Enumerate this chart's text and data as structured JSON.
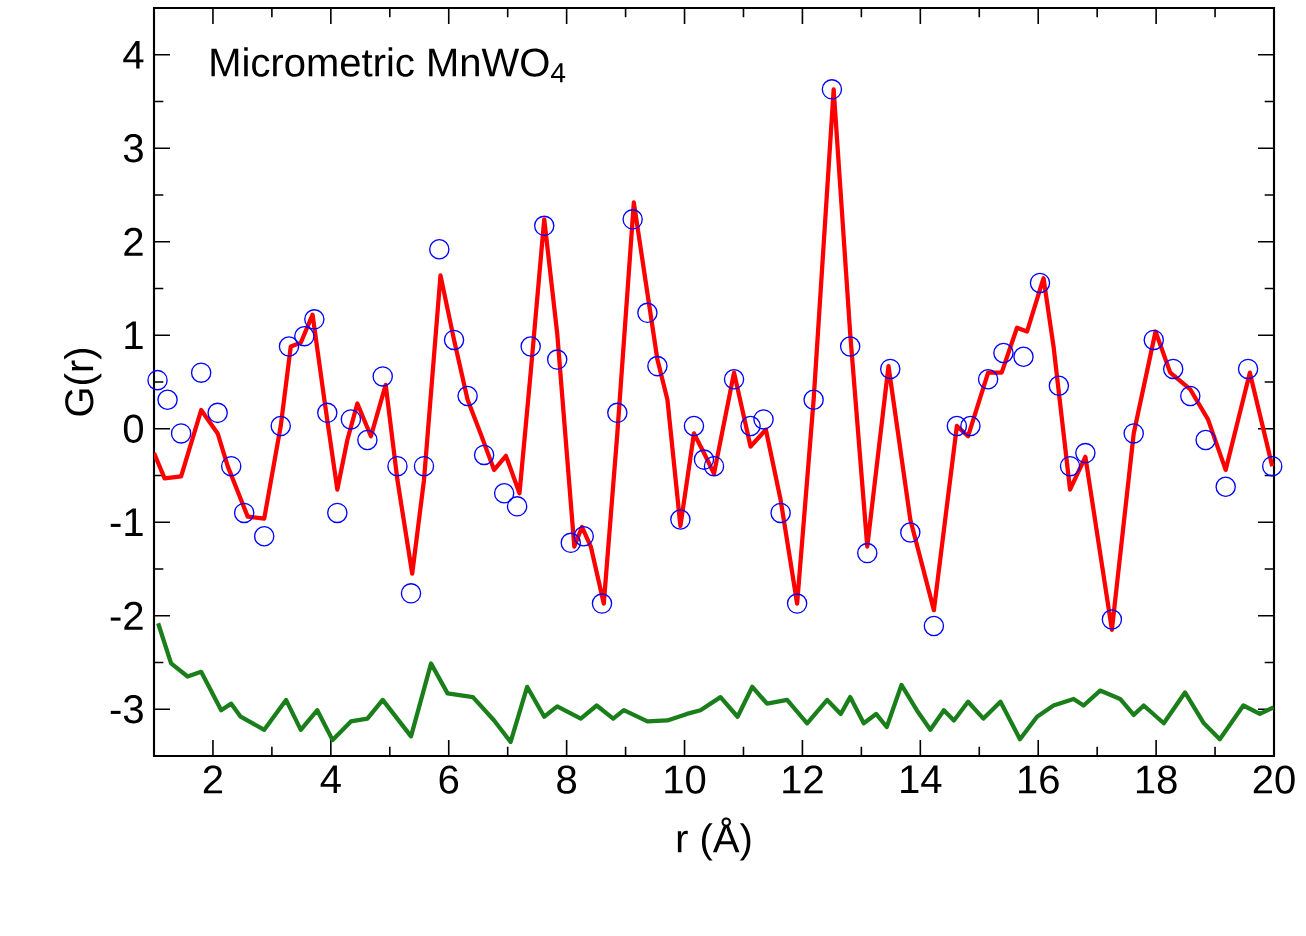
{
  "chart_data": {
    "type": "line",
    "xlabel": "r (Å)",
    "ylabel": "G(r)",
    "annotations": [
      "Micrometric MnWO$_{4}$"
    ],
    "xlim": [
      1,
      20
    ],
    "ylim": [
      -3.5,
      4.5
    ],
    "xticks": [
      2,
      4,
      6,
      8,
      10,
      12,
      14,
      16,
      18,
      20
    ],
    "yticks": [
      -3,
      -2,
      -1,
      0,
      1,
      2,
      3,
      4
    ],
    "grid": false,
    "series": [
      {
        "type": "scatter",
        "marker": "circle",
        "color": "#0000ff",
        "x": [
          1.06,
          1.23,
          1.46,
          1.8,
          2.08,
          2.31,
          2.53,
          2.87,
          3.15,
          3.29,
          3.55,
          3.72,
          3.94,
          4.11,
          4.34,
          4.62,
          4.88,
          5.13,
          5.36,
          5.58,
          5.84,
          6.09,
          6.32,
          6.6,
          6.94,
          7.16,
          7.39,
          7.62,
          7.84,
          8.07,
          8.29,
          8.6,
          8.86,
          9.12,
          9.37,
          9.54,
          9.93,
          10.16,
          10.33,
          10.5,
          10.84,
          11.12,
          11.34,
          11.63,
          11.91,
          12.19,
          12.5,
          12.81,
          13.1,
          13.49,
          13.83,
          14.23,
          14.62,
          14.85,
          15.15,
          15.41,
          15.75,
          16.03,
          16.35,
          16.54,
          16.8,
          17.25,
          17.62,
          17.96,
          18.29,
          18.58,
          18.84,
          19.18,
          19.56,
          19.97
        ],
        "values": [
          0.52,
          0.31,
          -0.05,
          0.6,
          0.17,
          -0.4,
          -0.9,
          -1.15,
          0.03,
          0.88,
          0.99,
          1.17,
          0.17,
          -0.9,
          0.1,
          -0.12,
          0.56,
          -0.4,
          -1.76,
          -0.4,
          1.92,
          0.95,
          0.35,
          -0.28,
          -0.69,
          -0.83,
          0.88,
          2.17,
          0.74,
          -1.22,
          -1.15,
          -1.87,
          0.17,
          2.24,
          1.24,
          0.67,
          -0.97,
          0.03,
          -0.33,
          -0.4,
          0.53,
          0.03,
          0.1,
          -0.9,
          -1.87,
          0.31,
          3.63,
          0.88,
          -1.33,
          0.64,
          -1.11,
          -2.11,
          0.03,
          0.03,
          0.53,
          0.81,
          0.77,
          1.56,
          0.46,
          -0.4,
          -0.26,
          -2.04,
          -0.05,
          0.95,
          0.64,
          0.35,
          -0.12,
          -0.62,
          0.64,
          -0.4
        ]
      },
      {
        "color": "#ff0000",
        "x": [
          1.0,
          1.18,
          1.46,
          1.8,
          2.08,
          2.25,
          2.59,
          2.87,
          3.15,
          3.32,
          3.49,
          3.69,
          3.89,
          4.11,
          4.28,
          4.45,
          4.68,
          4.93,
          5.13,
          5.38,
          5.58,
          5.86,
          6.09,
          6.32,
          6.54,
          6.77,
          6.97,
          7.2,
          7.39,
          7.62,
          7.84,
          8.13,
          8.26,
          8.41,
          8.63,
          8.86,
          9.14,
          9.37,
          9.54,
          9.71,
          9.93,
          10.16,
          10.33,
          10.5,
          10.84,
          11.12,
          11.38,
          11.63,
          11.91,
          12.19,
          12.53,
          12.81,
          13.1,
          13.46,
          13.83,
          14.23,
          14.62,
          14.81,
          15.15,
          15.38,
          15.64,
          15.81,
          16.09,
          16.26,
          16.54,
          16.8,
          17.25,
          17.62,
          17.99,
          18.24,
          18.58,
          18.88,
          19.18,
          19.59,
          19.97
        ],
        "values": [
          -0.26,
          -0.53,
          -0.51,
          0.2,
          -0.05,
          -0.4,
          -0.94,
          -0.96,
          0.03,
          0.88,
          0.92,
          1.22,
          0.31,
          -0.65,
          -0.12,
          0.27,
          -0.08,
          0.47,
          -0.55,
          -1.55,
          -0.55,
          1.64,
          0.95,
          0.31,
          -0.05,
          -0.44,
          -0.29,
          -0.69,
          0.6,
          2.24,
          1.02,
          -1.26,
          -1.05,
          -1.26,
          -1.87,
          -0.05,
          2.42,
          1.45,
          0.74,
          0.31,
          -1.04,
          -0.05,
          -0.26,
          -0.48,
          0.6,
          -0.19,
          -0.01,
          -0.76,
          -1.87,
          0.31,
          3.63,
          1.02,
          -1.26,
          0.67,
          -0.97,
          -1.94,
          0.03,
          -0.08,
          0.6,
          0.6,
          1.08,
          1.04,
          1.61,
          0.88,
          -0.65,
          -0.3,
          -2.15,
          -0.05,
          1.04,
          0.6,
          0.42,
          0.1,
          -0.44,
          0.6,
          -0.4
        ]
      },
      {
        "color": "#1a7f1a",
        "x": [
          1.07,
          1.29,
          1.57,
          1.8,
          2.14,
          2.31,
          2.47,
          2.87,
          3.24,
          3.49,
          3.77,
          4.03,
          4.34,
          4.62,
          4.88,
          5.36,
          5.7,
          5.98,
          6.41,
          6.77,
          7.05,
          7.33,
          7.62,
          7.84,
          8.24,
          8.51,
          8.79,
          8.97,
          9.37,
          9.71,
          10.04,
          10.27,
          10.61,
          10.9,
          11.15,
          11.4,
          11.74,
          12.08,
          12.42,
          12.65,
          12.81,
          13.04,
          13.25,
          13.43,
          13.68,
          13.94,
          14.17,
          14.4,
          14.57,
          14.81,
          15.07,
          15.36,
          15.69,
          15.98,
          16.26,
          16.6,
          16.77,
          17.05,
          17.39,
          17.62,
          17.79,
          18.13,
          18.49,
          18.81,
          19.08,
          19.48,
          19.76,
          19.99
        ],
        "values": [
          -2.08,
          -2.51,
          -2.65,
          -2.6,
          -3.01,
          -2.94,
          -3.08,
          -3.22,
          -2.9,
          -3.22,
          -3.01,
          -3.33,
          -3.13,
          -3.1,
          -2.9,
          -3.29,
          -2.51,
          -2.83,
          -2.87,
          -3.12,
          -3.35,
          -2.76,
          -3.08,
          -2.97,
          -3.1,
          -2.96,
          -3.1,
          -3.01,
          -3.13,
          -3.12,
          -3.05,
          -3.01,
          -2.87,
          -3.08,
          -2.76,
          -2.94,
          -2.9,
          -3.15,
          -2.9,
          -3.05,
          -2.87,
          -3.15,
          -3.05,
          -3.19,
          -2.74,
          -3.01,
          -3.22,
          -3.01,
          -3.12,
          -2.92,
          -3.1,
          -2.92,
          -3.32,
          -3.08,
          -2.96,
          -2.89,
          -2.96,
          -2.8,
          -2.89,
          -3.06,
          -2.96,
          -3.15,
          -2.82,
          -3.15,
          -3.32,
          -2.96,
          -3.05,
          -2.98
        ]
      }
    ]
  }
}
